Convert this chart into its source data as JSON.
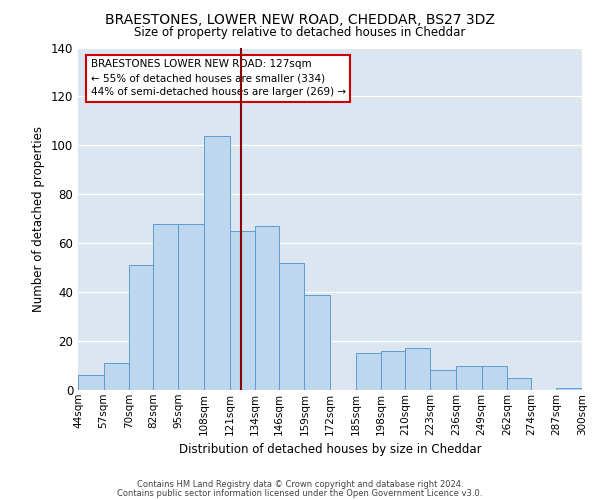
{
  "title1": "BRAESTONES, LOWER NEW ROAD, CHEDDAR, BS27 3DZ",
  "title2": "Size of property relative to detached houses in Cheddar",
  "xlabel": "Distribution of detached houses by size in Cheddar",
  "ylabel": "Number of detached properties",
  "footnote1": "Contains HM Land Registry data © Crown copyright and database right 2024.",
  "footnote2": "Contains public sector information licensed under the Open Government Licence v3.0.",
  "bin_edges": [
    44,
    57,
    70,
    82,
    95,
    108,
    121,
    134,
    146,
    159,
    172,
    185,
    198,
    210,
    223,
    236,
    249,
    262,
    274,
    287,
    300
  ],
  "bar_heights": [
    6,
    11,
    51,
    68,
    68,
    104,
    65,
    67,
    52,
    39,
    0,
    15,
    16,
    17,
    8,
    10,
    10,
    5,
    0,
    1
  ],
  "tick_labels": [
    "44sqm",
    "57sqm",
    "70sqm",
    "82sqm",
    "95sqm",
    "108sqm",
    "121sqm",
    "134sqm",
    "146sqm",
    "159sqm",
    "172sqm",
    "185sqm",
    "198sqm",
    "210sqm",
    "223sqm",
    "236sqm",
    "249sqm",
    "262sqm",
    "274sqm",
    "287sqm",
    "300sqm"
  ],
  "bar_color": "#bdd7ee",
  "bar_edge_color": "#5b9bd5",
  "plot_bg_color": "#dce6f1",
  "marker_value": 127,
  "marker_color": "#8b0000",
  "annotation_title": "BRAESTONES LOWER NEW ROAD: 127sqm",
  "annotation_line1": "← 55% of detached houses are smaller (334)",
  "annotation_line2": "44% of semi-detached houses are larger (269) →",
  "ann_box_color": "#ffffff",
  "ann_border_color": "#cc0000",
  "ylim": [
    0,
    140
  ],
  "yticks": [
    0,
    20,
    40,
    60,
    80,
    100,
    120,
    140
  ]
}
